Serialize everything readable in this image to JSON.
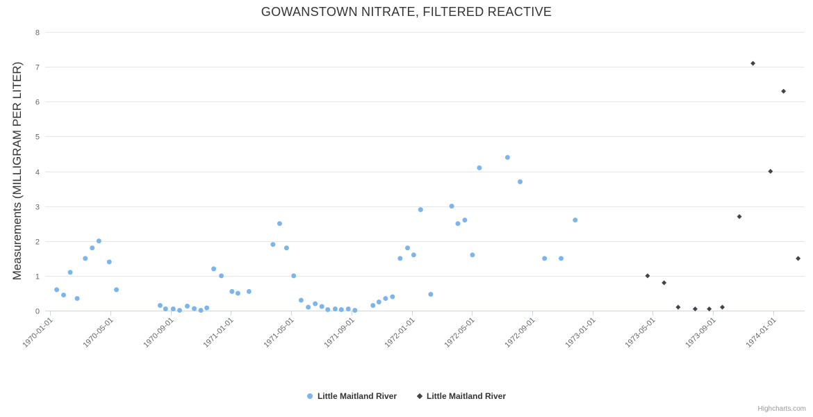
{
  "chart": {
    "credits": "Highcharts.com"
  },
  "chart_data": {
    "type": "scatter",
    "title": "GOWANSTOWN NITRATE, FILTERED REACTIVE",
    "xlabel": "",
    "ylabel": "Measurements (MILLIGRAM PER LITER)",
    "ylim": [
      0,
      8
    ],
    "yticks": [
      0,
      1,
      2,
      3,
      4,
      5,
      6,
      7,
      8
    ],
    "xticks": [
      "1970-01-01",
      "1970-05-01",
      "1970-09-01",
      "1971-01-01",
      "1971-05-01",
      "1971-09-01",
      "1972-01-01",
      "1972-05-01",
      "1972-09-01",
      "1973-01-01",
      "1973-05-01",
      "1973-09-01",
      "1974-01-01"
    ],
    "grid": true,
    "legend_position": "bottom-center",
    "colors": {
      "series1": "#7cb5ec",
      "series2": "#434348",
      "gridline": "#e6e6e6",
      "axis_line": "#ccd6eb",
      "axis_label": "#666666"
    },
    "series": [
      {
        "name": "Little Maitland River",
        "marker": "circle",
        "color": "#7cb5ec",
        "points": [
          [
            "1970-01-14",
            0.6
          ],
          [
            "1970-01-28",
            0.45
          ],
          [
            "1970-02-11",
            1.1
          ],
          [
            "1970-02-25",
            0.35
          ],
          [
            "1970-03-11",
            1.5
          ],
          [
            "1970-03-25",
            1.8
          ],
          [
            "1970-04-08",
            2.0
          ],
          [
            "1970-04-29",
            1.4
          ],
          [
            "1970-05-13",
            0.6
          ],
          [
            "1970-08-10",
            0.15
          ],
          [
            "1970-08-21",
            0.05
          ],
          [
            "1970-09-06",
            0.05
          ],
          [
            "1970-09-19",
            0.01
          ],
          [
            "1970-10-04",
            0.13
          ],
          [
            "1970-10-18",
            0.06
          ],
          [
            "1970-11-01",
            0.01
          ],
          [
            "1970-11-13",
            0.08
          ],
          [
            "1970-11-27",
            1.2
          ],
          [
            "1970-12-12",
            1.0
          ],
          [
            "1971-01-03",
            0.55
          ],
          [
            "1971-01-15",
            0.5
          ],
          [
            "1971-02-07",
            0.55
          ],
          [
            "1971-03-25",
            1.9
          ],
          [
            "1971-04-08",
            2.5
          ],
          [
            "1971-04-22",
            1.8
          ],
          [
            "1971-05-06",
            1.0
          ],
          [
            "1971-05-21",
            0.3
          ],
          [
            "1971-06-05",
            0.1
          ],
          [
            "1971-06-19",
            0.2
          ],
          [
            "1971-07-02",
            0.12
          ],
          [
            "1971-07-14",
            0.03
          ],
          [
            "1971-07-29",
            0.05
          ],
          [
            "1971-08-11",
            0.03
          ],
          [
            "1971-08-25",
            0.05
          ],
          [
            "1971-09-08",
            0.01
          ],
          [
            "1971-10-14",
            0.15
          ],
          [
            "1971-10-26",
            0.25
          ],
          [
            "1971-11-09",
            0.35
          ],
          [
            "1971-11-23",
            0.4
          ],
          [
            "1971-12-08",
            1.5
          ],
          [
            "1971-12-23",
            1.8
          ],
          [
            "1972-01-05",
            1.6
          ],
          [
            "1972-01-19",
            2.9
          ],
          [
            "1972-02-09",
            0.47
          ],
          [
            "1972-03-21",
            3.0
          ],
          [
            "1972-04-03",
            2.5
          ],
          [
            "1972-04-17",
            2.6
          ],
          [
            "1972-05-02",
            1.6
          ],
          [
            "1972-05-16",
            4.1
          ],
          [
            "1972-07-12",
            4.4
          ],
          [
            "1972-08-07",
            3.7
          ],
          [
            "1972-09-26",
            1.5
          ],
          [
            "1972-10-29",
            1.5
          ],
          [
            "1972-11-27",
            2.6
          ]
        ]
      },
      {
        "name": "Little Maitland River",
        "marker": "diamond",
        "color": "#434348",
        "points": [
          [
            "1973-04-21",
            1.0
          ],
          [
            "1973-05-24",
            0.8
          ],
          [
            "1973-06-22",
            0.1
          ],
          [
            "1973-07-26",
            0.05
          ],
          [
            "1973-08-24",
            0.05
          ],
          [
            "1973-09-20",
            0.1
          ],
          [
            "1973-10-24",
            2.7
          ],
          [
            "1973-11-21",
            7.1
          ],
          [
            "1973-12-26",
            4.0
          ],
          [
            "1974-01-22",
            6.3
          ],
          [
            "1974-02-21",
            1.5
          ]
        ]
      }
    ]
  }
}
